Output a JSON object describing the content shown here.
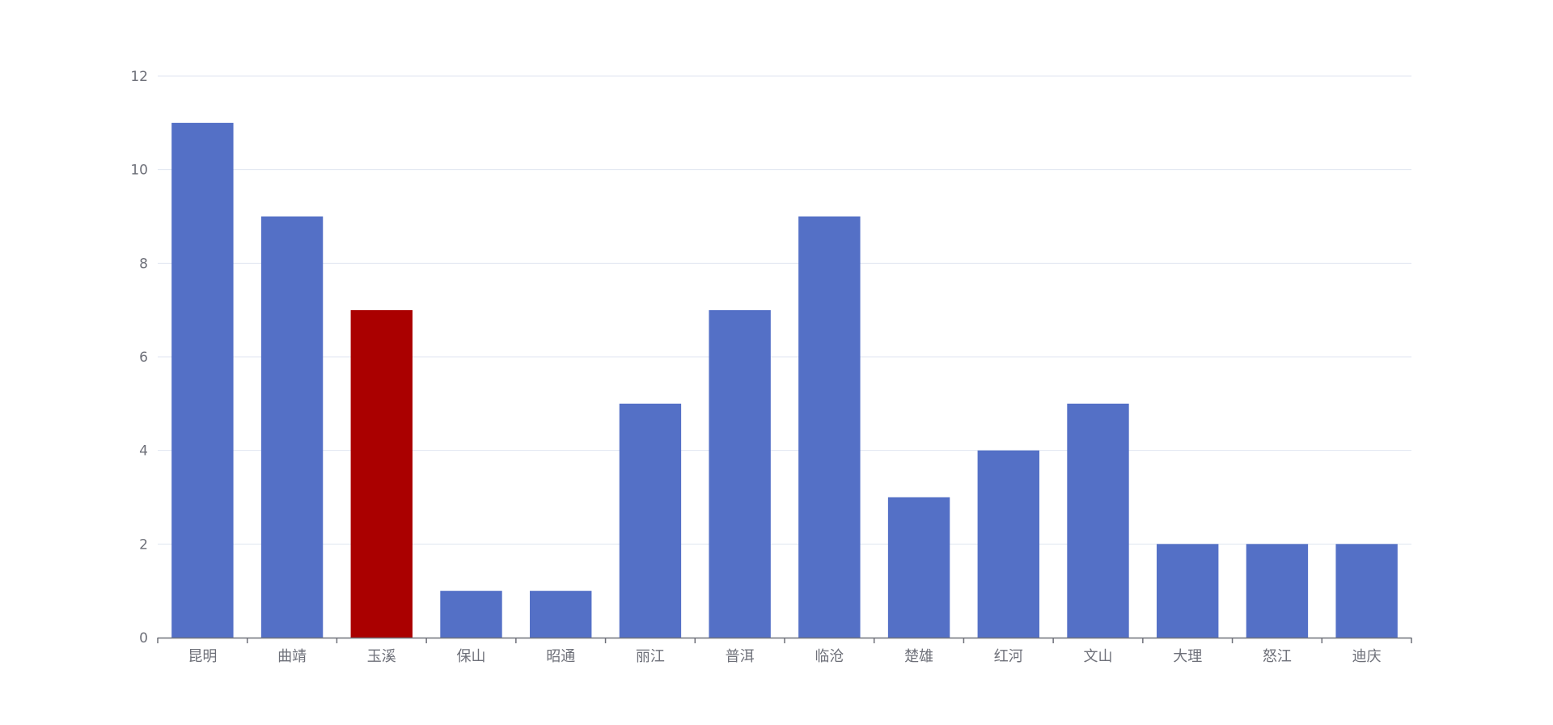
{
  "colors": {
    "bar": "#5470c6",
    "highlight": "#aa0000",
    "grid": "#e0e6f1",
    "axis": "#6e7079",
    "label": "#6e7079"
  },
  "chart_data": {
    "type": "bar",
    "categories": [
      "昆明",
      "曲靖",
      "玉溪",
      "保山",
      "昭通",
      "丽江",
      "普洱",
      "临沧",
      "楚雄",
      "红河",
      "文山",
      "大理",
      "怒江",
      "迪庆"
    ],
    "values": [
      11,
      9,
      7,
      1,
      1,
      5,
      7,
      9,
      3,
      4,
      5,
      2,
      2,
      2
    ],
    "highlighted_category": "玉溪",
    "ylim": [
      0,
      12
    ],
    "yticks": [
      0,
      2,
      4,
      6,
      8,
      10,
      12
    ],
    "grid": true,
    "legend": "none"
  }
}
